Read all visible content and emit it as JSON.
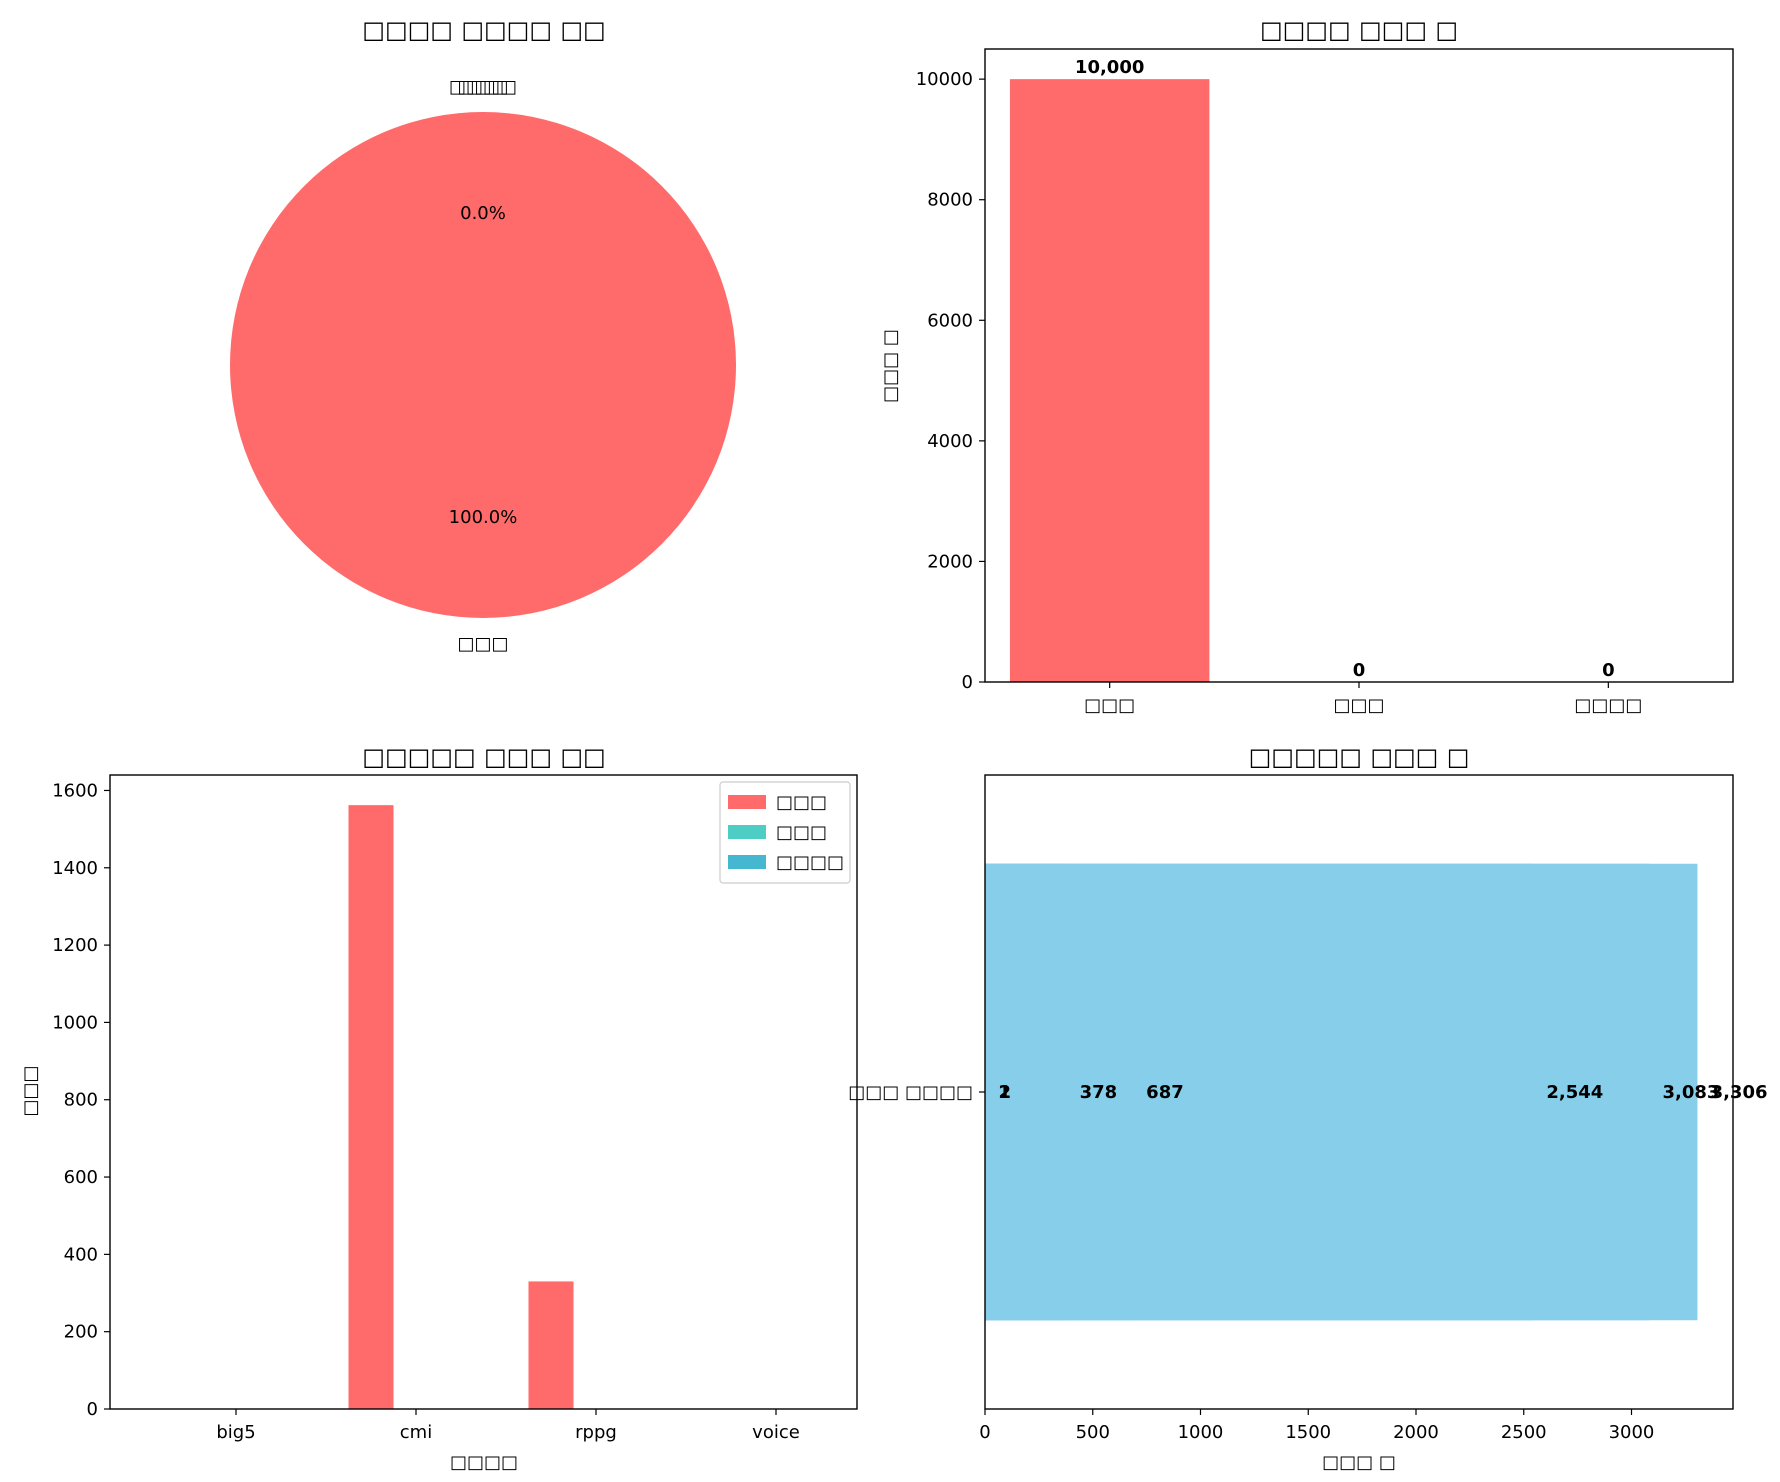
{
  "chart_data": [
    {
      "type": "pie",
      "title": "□□□□ □□□□ □□",
      "slices": [
        {
          "label": "□□□",
          "value": 100.0,
          "pct_label": "100.0%",
          "color": "#FF6B6B"
        },
        {
          "label": "□□□",
          "value": 0.0,
          "pct_label": "",
          "color": "#4ECDC4"
        },
        {
          "label": "□□□□",
          "value": 0.0,
          "pct_label": "0.0%",
          "color": "#45B7D1"
        }
      ]
    },
    {
      "type": "bar",
      "title": "□□□□ □□□ □",
      "ylabel": "□□□ □",
      "ylim": [
        0,
        10500
      ],
      "yticks": [
        "0",
        "2000",
        "4000",
        "6000",
        "8000",
        "10000"
      ],
      "categories": [
        "□□□",
        "□□□",
        "□□□□"
      ],
      "values": [
        10000,
        0,
        0
      ],
      "value_labels": [
        "10,000",
        "0",
        "0"
      ],
      "color": "#FF6B6B"
    },
    {
      "type": "bar",
      "title": "□□□□□ □□□ □□",
      "xlabel": "□□□□",
      "ylabel": "□□□",
      "ylim": [
        0,
        1640
      ],
      "yticks": [
        "0",
        "200",
        "400",
        "600",
        "800",
        "1000",
        "1200",
        "1400",
        "1600"
      ],
      "categories": [
        "big5",
        "cmi",
        "rppg",
        "voice"
      ],
      "series": [
        {
          "name": "□□□",
          "color": "#FF6B6B",
          "values": [
            0,
            1562,
            330,
            0
          ]
        },
        {
          "name": "□□□",
          "color": "#4ECDC4",
          "values": [
            0,
            0,
            0,
            0
          ]
        },
        {
          "name": "□□□□",
          "color": "#45B7D1",
          "values": [
            0,
            0,
            0,
            0
          ]
        }
      ],
      "legend": "top-right"
    },
    {
      "type": "bar",
      "orientation": "horizontal",
      "title": "□□□□□ □□□ □",
      "xlabel": "□□□ □",
      "xlim": [
        0,
        3471
      ],
      "xticks": [
        "0",
        "500",
        "1000",
        "1500",
        "2000",
        "2500",
        "3000"
      ],
      "category": "□□□ □□□□",
      "values": [
        1,
        2,
        378,
        687,
        2544,
        3083,
        3306
      ],
      "value_labels": [
        "1",
        "2",
        "378",
        "687",
        "2,544",
        "3,083",
        "3,306"
      ],
      "color": "#87CEEB"
    }
  ]
}
